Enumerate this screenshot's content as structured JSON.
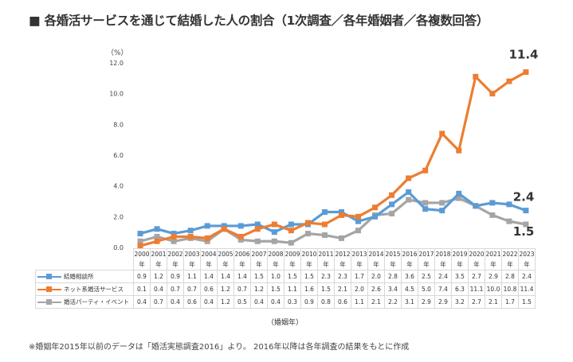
{
  "title": "■ 各婚活サービスを通じて結婚した人の割合（1次調査／各年婚姻者／各複数回答）",
  "footnote": "※婚姻年2015年以前のデータは「婚活実態調査2016」より。 2016年以降は各年調査の結果をもとに作成",
  "chart_data": {
    "type": "line",
    "title": "各婚活サービスを通じて結婚した人の割合（1次調査／各年婚姻者／各複数回答）",
    "ylabel": "（%）",
    "xlabel": "（婚姻年）",
    "ylim": [
      0,
      12
    ],
    "yticks": [
      "0.0",
      "2.0",
      "4.0",
      "6.0",
      "8.0",
      "10.0",
      "12.0"
    ],
    "grid": false,
    "legend": "table-left",
    "x": [
      "2000",
      "2001",
      "2002",
      "2003",
      "2004",
      "2005",
      "2006",
      "2007",
      "2008",
      "2009",
      "2010",
      "2011",
      "2012",
      "2013",
      "2014",
      "2015",
      "2016",
      "2017",
      "2018",
      "2019",
      "2020",
      "2021",
      "2022",
      "2023"
    ],
    "x_suffix": "年",
    "series": [
      {
        "name": "結婚相談所",
        "color": "#5b9bd5",
        "values": [
          0.9,
          1.2,
          0.9,
          1.1,
          1.4,
          1.4,
          1.4,
          1.5,
          1.0,
          1.5,
          1.5,
          2.3,
          2.3,
          1.7,
          2.0,
          2.8,
          3.6,
          2.5,
          2.4,
          3.5,
          2.7,
          2.9,
          2.8,
          2.4
        ],
        "end_label": "2.4"
      },
      {
        "name": "ネット系婚活サービス",
        "color": "#ed7d31",
        "values": [
          0.1,
          0.4,
          0.7,
          0.7,
          0.6,
          1.2,
          0.7,
          1.2,
          1.5,
          1.1,
          1.6,
          1.5,
          2.1,
          2.0,
          2.6,
          3.4,
          4.5,
          5.0,
          7.4,
          6.3,
          11.1,
          10.0,
          10.8,
          11.4
        ],
        "end_label": "11.4"
      },
      {
        "name": "婚活パーティ・イベント",
        "color": "#a5a5a5",
        "values": [
          0.4,
          0.7,
          0.4,
          0.6,
          0.4,
          1.2,
          0.5,
          0.4,
          0.4,
          0.3,
          0.9,
          0.8,
          0.6,
          1.1,
          2.1,
          2.2,
          3.1,
          2.9,
          2.9,
          3.2,
          2.7,
          2.1,
          1.7,
          1.5
        ],
        "end_label": "1.5"
      }
    ]
  }
}
